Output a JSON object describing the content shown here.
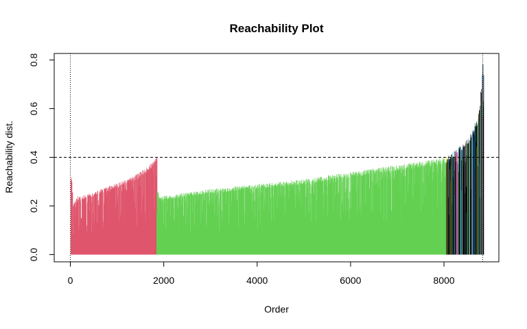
{
  "chart_data": {
    "type": "bar",
    "title": "Reachability Plot",
    "xlabel": "Order",
    "ylabel": "Reachability dist.",
    "xlim": [
      0,
      8830
    ],
    "ylim": [
      0,
      0.8
    ],
    "x_ticks": [
      "0",
      "2000",
      "4000",
      "6000",
      "8000"
    ],
    "x_tick_values": [
      0,
      2000,
      4000,
      6000,
      8000
    ],
    "y_ticks": [
      "0.0",
      "0.2",
      "0.4",
      "0.6",
      "0.8"
    ],
    "y_tick_values": [
      0,
      0.2,
      0.4,
      0.6,
      0.8
    ],
    "threshold": 0.4,
    "vertical_markers": [
      0,
      8830
    ],
    "grid": false,
    "clusters": [
      {
        "order_range": [
          1,
          1840
        ],
        "color": "#DF536B",
        "envelope": [
          [
            1,
            0.33
          ],
          [
            30,
            0.32
          ],
          [
            60,
            0.21
          ],
          [
            150,
            0.24
          ],
          [
            400,
            0.25
          ],
          [
            800,
            0.28
          ],
          [
            1200,
            0.31
          ],
          [
            1500,
            0.34
          ],
          [
            1700,
            0.37
          ],
          [
            1840,
            0.4
          ]
        ]
      },
      {
        "order_range": [
          1841,
          8040
        ],
        "color": "#61D04F",
        "envelope": [
          [
            1841,
            0.29
          ],
          [
            1900,
            0.24
          ],
          [
            2300,
            0.25
          ],
          [
            3000,
            0.27
          ],
          [
            4000,
            0.29
          ],
          [
            5000,
            0.31
          ],
          [
            6000,
            0.34
          ],
          [
            7000,
            0.37
          ],
          [
            8040,
            0.4
          ]
        ]
      },
      {
        "order_range": [
          8041,
          8830
        ],
        "color": "#000000",
        "envelope": [
          [
            8041,
            0.4
          ],
          [
            8300,
            0.44
          ],
          [
            8500,
            0.48
          ],
          [
            8650,
            0.53
          ],
          [
            8760,
            0.6
          ],
          [
            8830,
            0.79
          ]
        ]
      }
    ]
  }
}
